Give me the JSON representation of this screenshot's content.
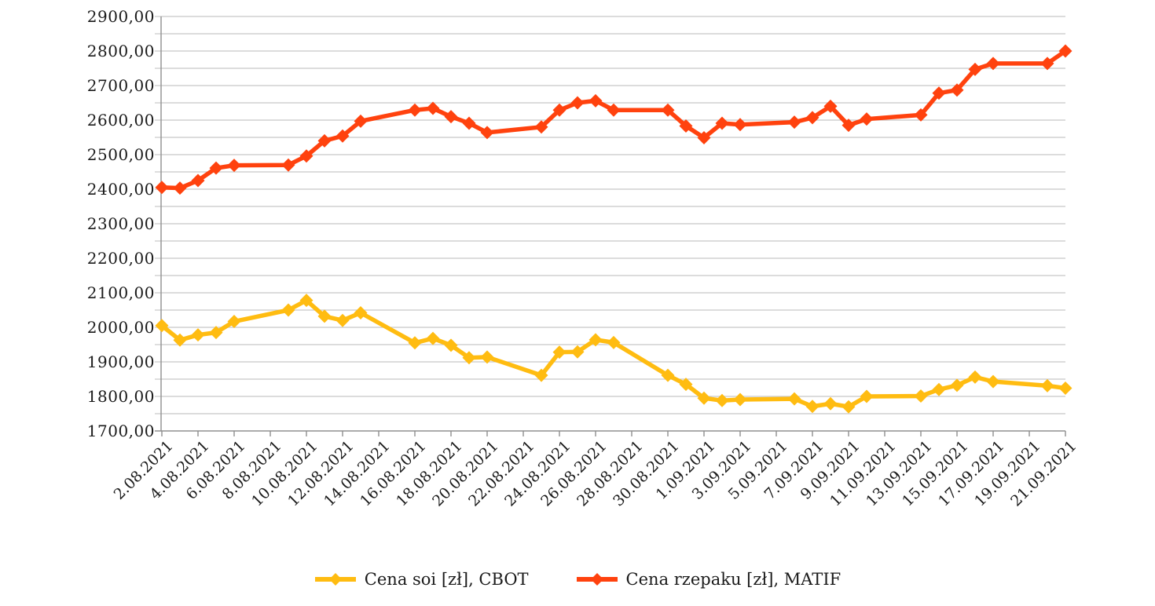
{
  "chart_data": {
    "type": "line",
    "title": "",
    "currency_note": "values in zł",
    "y_axis": {
      "min": 1700,
      "max": 2900,
      "major_step": 100,
      "minor_step": 50,
      "tick_labels": [
        "2900,00",
        "2800,00",
        "2700,00",
        "2600,00",
        "2500,00",
        "2400,00",
        "2300,00",
        "2200,00",
        "2100,00",
        "2000,00",
        "1900,00",
        "1800,00",
        "1700,00"
      ]
    },
    "x_axis": {
      "tick_labels": [
        "2.08.2021",
        "4.08.2021",
        "6.08.2021",
        "8.08.2021",
        "10.08.2021",
        "12.08.2021",
        "14.08.2021",
        "16.08.2021",
        "18.08.2021",
        "20.08.2021",
        "22.08.2021",
        "24.08.2021",
        "26.08.2021",
        "28.08.2021",
        "30.08.2021",
        "1.09.2021",
        "3.09.2021",
        "5.09.2021",
        "7.09.2021",
        "9.09.2021",
        "11.09.2021",
        "13.09.2021",
        "15.09.2021",
        "17.09.2021",
        "19.09.2021",
        "21.09.2021"
      ],
      "tick_day_offsets": [
        0,
        2,
        4,
        6,
        8,
        10,
        12,
        14,
        16,
        18,
        20,
        22,
        24,
        26,
        28,
        30,
        32,
        34,
        36,
        38,
        40,
        42,
        44,
        46,
        48,
        50
      ]
    },
    "grid": "horizontal, every 50",
    "legend_position": "bottom-center",
    "point_dates": [
      "2.08.2021",
      "3.08.2021",
      "4.08.2021",
      "5.08.2021",
      "6.08.2021",
      "9.08.2021",
      "10.08.2021",
      "11.08.2021",
      "12.08.2021",
      "13.08.2021",
      "16.08.2021",
      "17.08.2021",
      "18.08.2021",
      "19.08.2021",
      "20.08.2021",
      "23.08.2021",
      "24.08.2021",
      "25.08.2021",
      "26.08.2021",
      "27.08.2021",
      "30.08.2021",
      "31.08.2021",
      "1.09.2021",
      "2.09.2021",
      "3.09.2021",
      "6.09.2021",
      "7.09.2021",
      "8.09.2021",
      "9.09.2021",
      "10.09.2021",
      "13.09.2021",
      "14.09.2021",
      "15.09.2021",
      "16.09.2021",
      "17.09.2021",
      "20.09.2021",
      "21.09.2021"
    ],
    "point_day_offsets": [
      0,
      1,
      2,
      3,
      4,
      7,
      8,
      9,
      10,
      11,
      14,
      15,
      16,
      17,
      18,
      21,
      22,
      23,
      24,
      25,
      28,
      29,
      30,
      31,
      32,
      35,
      36,
      37,
      38,
      39,
      42,
      43,
      44,
      45,
      46,
      49,
      50
    ],
    "series": [
      {
        "name": "Cena soi [zł], CBOT",
        "color": "#FFBC11",
        "marker": "diamond",
        "values": [
          2005,
          1963,
          1978,
          1985,
          2017,
          2050,
          2078,
          2032,
          2020,
          2042,
          1955,
          1968,
          1948,
          1912,
          1914,
          1861,
          1928,
          1929,
          1964,
          1956,
          1861,
          1835,
          1795,
          1788,
          1791,
          1793,
          1771,
          1779,
          1770,
          1800,
          1801,
          1820,
          1832,
          1856,
          1843,
          1831,
          1824
        ]
      },
      {
        "name": "Cena rzepaku [zł], MATIF",
        "color": "#FF420E",
        "marker": "diamond",
        "values": [
          2405,
          2403,
          2425,
          2461,
          2469,
          2470,
          2496,
          2540,
          2554,
          2597,
          2629,
          2634,
          2610,
          2591,
          2564,
          2580,
          2629,
          2650,
          2656,
          2629,
          2629,
          2583,
          2549,
          2591,
          2587,
          2594,
          2607,
          2640,
          2585,
          2603,
          2615,
          2678,
          2687,
          2747,
          2764,
          2764,
          2800
        ]
      }
    ]
  },
  "legend": {
    "items": [
      {
        "label": "Cena soi [zł], CBOT",
        "color": "#FFBC11"
      },
      {
        "label": "Cena rzepaku [zł], MATIF",
        "color": "#FF420E"
      }
    ]
  },
  "colors": {
    "gridline": "#c8c8c8",
    "axis": "#8f8f8f",
    "text": "#1a1a1a",
    "background": "#ffffff"
  }
}
